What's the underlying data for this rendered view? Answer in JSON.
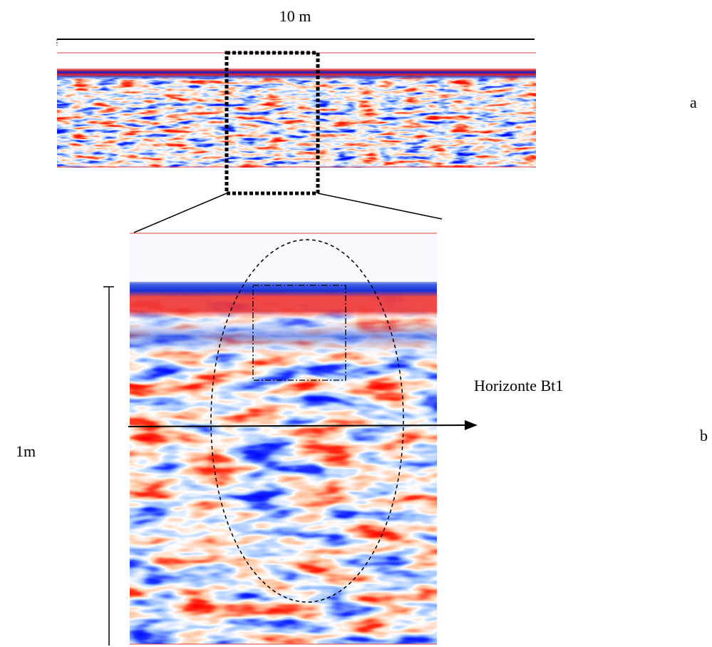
{
  "labels": {
    "scale_top": "10 m",
    "panel_a": "a",
    "horizon": "Horizonte Bt1",
    "panel_b": "b",
    "scale_side": "1m"
  }
}
